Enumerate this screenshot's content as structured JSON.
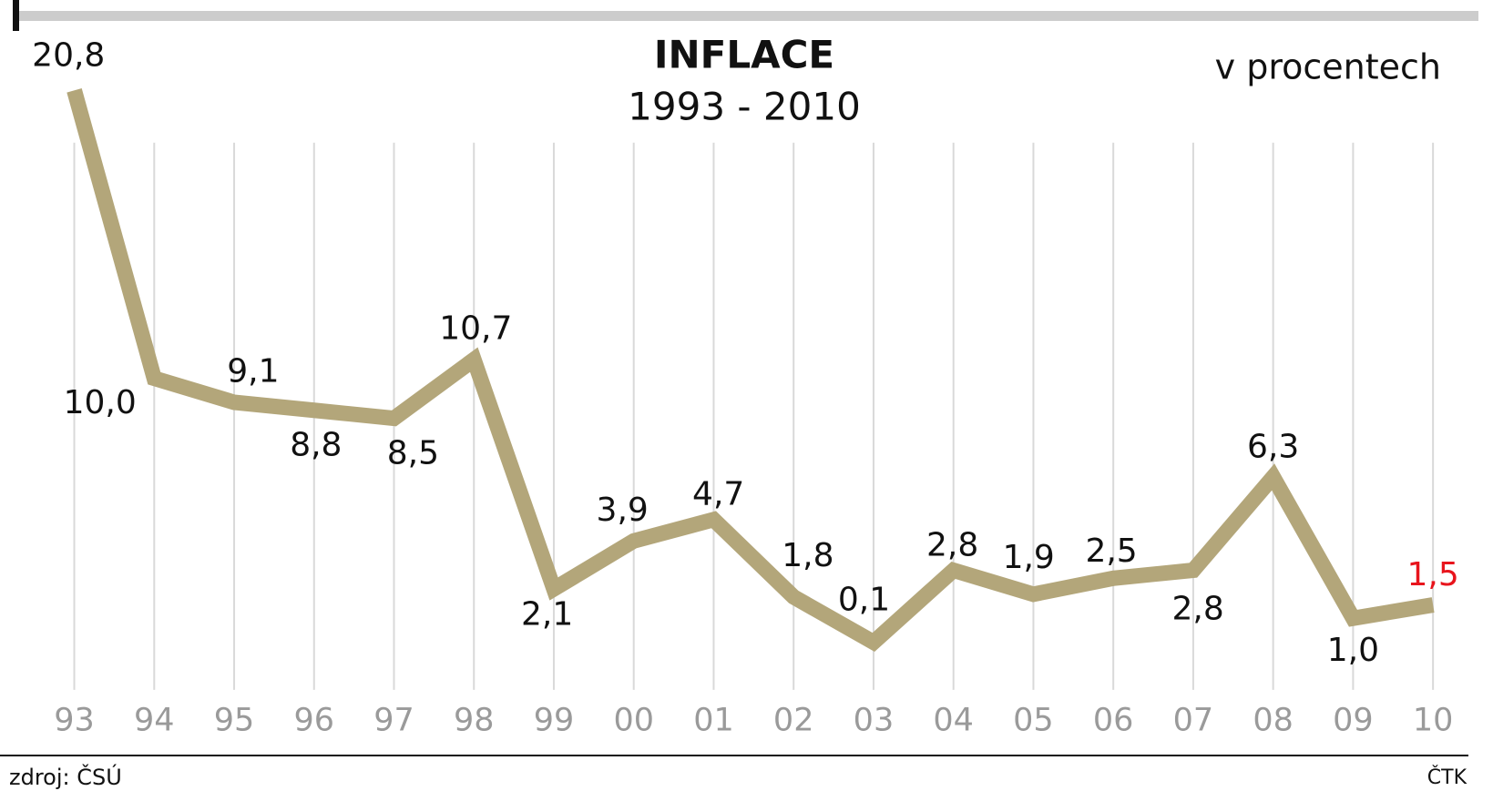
{
  "chart_data": {
    "type": "line",
    "title": "INFLACE",
    "subtitle": "1993 - 2010",
    "unit_label": "v procentech",
    "source": "zdroj: ČSÚ",
    "credit": "ČTK",
    "categories": [
      "93",
      "94",
      "95",
      "96",
      "97",
      "98",
      "99",
      "00",
      "01",
      "02",
      "03",
      "04",
      "05",
      "06",
      "07",
      "08",
      "09",
      "10"
    ],
    "series": [
      {
        "name": "inflace",
        "color": "#b3a67a",
        "values": [
          20.8,
          10.0,
          9.1,
          8.8,
          8.5,
          10.7,
          2.1,
          3.9,
          4.7,
          1.8,
          0.1,
          2.8,
          1.9,
          2.5,
          2.8,
          6.3,
          1.0,
          1.5
        ],
        "value_labels": [
          "20,8",
          "10,0",
          "9,1",
          "8,8",
          "8,5",
          "10,7",
          "2,1",
          "3,9",
          "4,7",
          "1,8",
          "0,1",
          "2,8",
          "1,9",
          "2,5",
          "2,8",
          "6,3",
          "1,0",
          "1,5"
        ],
        "label_colors": [
          "#111",
          "#111",
          "#111",
          "#111",
          "#111",
          "#111",
          "#111",
          "#111",
          "#111",
          "#111",
          "#111",
          "#111",
          "#111",
          "#111",
          "#111",
          "#111",
          "#111",
          "#e8141c"
        ]
      }
    ],
    "grid": true
  }
}
